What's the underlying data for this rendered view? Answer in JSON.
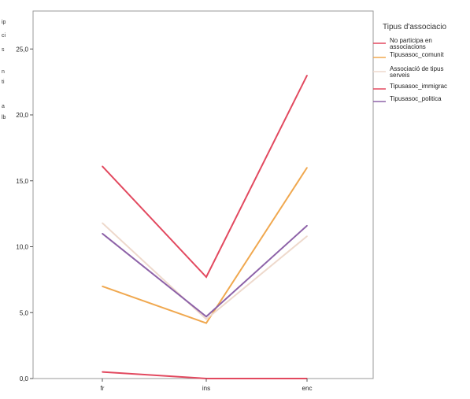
{
  "chart_data": {
    "type": "line",
    "categories": [
      "fr",
      "ins",
      "enc"
    ],
    "ylim": [
      0,
      27
    ],
    "yticks": [
      "0,0",
      "5,0",
      "10,0",
      "15,0",
      "20,0",
      "25,0"
    ],
    "ytick_values": [
      0,
      5,
      10,
      15,
      20,
      25
    ],
    "ylabel_fragments": [
      "ip",
      "ci",
      "s",
      "n",
      "ti",
      "a",
      "lb"
    ],
    "legend": {
      "title": "Tipus d'associacio",
      "placement": "right"
    },
    "grid": false,
    "series": [
      {
        "name": "No participa en associacions",
        "legend_lines": [
          "No participa en",
          "associacions"
        ],
        "color": "#e2495f",
        "values": [
          0.5,
          0.0,
          0.0
        ]
      },
      {
        "name": "Tipusasoc_comunit",
        "legend_lines": [
          "Tipusasoc_comunit"
        ],
        "color": "#f0a84f",
        "values": [
          7.0,
          4.2,
          16.0
        ]
      },
      {
        "name": "Associació de tipus serveis",
        "legend_lines": [
          "Associació de tipus",
          "serveis"
        ],
        "color": "#eed9cc",
        "values": [
          11.8,
          4.5,
          10.8
        ]
      },
      {
        "name": "Tipusasoc_immigrac",
        "legend_lines": [
          "Tipusasoc_immigrac"
        ],
        "color": "#e2495f",
        "values": [
          16.1,
          7.7,
          23.0
        ]
      },
      {
        "name": "Tipusasoc_politica",
        "legend_lines": [
          "Tipusasoc_politica"
        ],
        "color": "#8d62a8",
        "values": [
          11.0,
          4.7,
          11.6
        ]
      }
    ]
  }
}
